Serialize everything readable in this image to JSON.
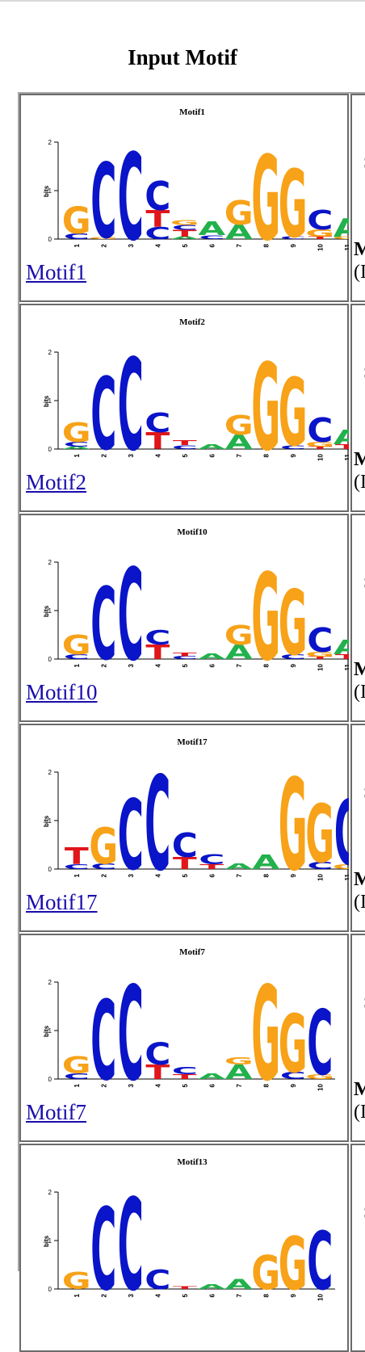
{
  "page": {
    "title": "Input Motif"
  },
  "axis": {
    "ylabel": "bits",
    "ticks": [
      "0",
      "1",
      "2"
    ]
  },
  "right_column": {
    "s": "S",
    "m": "M",
    "paren": "(I"
  },
  "colors": {
    "A": "#22b14c",
    "C": "#0a14c8",
    "G": "#f7a218",
    "T": "#e0161a"
  },
  "motifs": [
    {
      "name": "Motif1",
      "link": "Motif1",
      "positions": [
        [
          [
            "C",
            0.12
          ],
          [
            "G",
            0.55
          ]
        ],
        [
          [
            "G",
            0.04
          ],
          [
            "C",
            1.55
          ]
        ],
        [
          [
            "C",
            1.8
          ]
        ],
        [
          [
            "C",
            0.25
          ],
          [
            "T",
            0.35
          ],
          [
            "C",
            0.6
          ]
        ],
        [
          [
            "A",
            0.05
          ],
          [
            "T",
            0.14
          ],
          [
            "C",
            0.1
          ],
          [
            "G",
            0.1
          ]
        ],
        [
          [
            "C",
            0.08
          ],
          [
            "A",
            0.28
          ]
        ],
        [
          [
            "A",
            0.3
          ],
          [
            "G",
            0.5
          ]
        ],
        [
          [
            "G",
            1.75
          ]
        ],
        [
          [
            "C",
            0.05
          ],
          [
            "G",
            1.4
          ]
        ],
        [
          [
            "T",
            0.05
          ],
          [
            "G",
            0.15
          ],
          [
            "C",
            0.4
          ]
        ],
        [
          [
            "G",
            0.05
          ],
          [
            "A",
            0.38
          ]
        ]
      ]
    },
    {
      "name": "Motif2",
      "link": "Motif2",
      "positions": [
        [
          [
            "A",
            0.05
          ],
          [
            "C",
            0.1
          ],
          [
            "G",
            0.4
          ]
        ],
        [
          [
            "C",
            1.5
          ]
        ],
        [
          [
            "C",
            1.9
          ]
        ],
        [
          [
            "T",
            0.35
          ],
          [
            "C",
            0.4
          ]
        ],
        [
          [
            "C",
            0.08
          ],
          [
            "T",
            0.1
          ]
        ],
        [
          [
            "A",
            0.1
          ]
        ],
        [
          [
            "A",
            0.3
          ],
          [
            "G",
            0.4
          ]
        ],
        [
          [
            "G",
            1.8
          ]
        ],
        [
          [
            "C",
            0.08
          ],
          [
            "G",
            1.4
          ]
        ],
        [
          [
            "T",
            0.05
          ],
          [
            "G",
            0.1
          ],
          [
            "C",
            0.5
          ]
        ],
        [
          [
            "T",
            0.1
          ],
          [
            "A",
            0.3
          ]
        ]
      ]
    },
    {
      "name": "Motif10",
      "link": "Motif10",
      "positions": [
        [
          [
            "C",
            0.1
          ],
          [
            "G",
            0.4
          ]
        ],
        [
          [
            "C",
            1.5
          ]
        ],
        [
          [
            "C",
            1.9
          ]
        ],
        [
          [
            "T",
            0.3
          ],
          [
            "C",
            0.3
          ]
        ],
        [
          [
            "C",
            0.06
          ],
          [
            "T",
            0.08
          ]
        ],
        [
          [
            "A",
            0.12
          ]
        ],
        [
          [
            "A",
            0.3
          ],
          [
            "G",
            0.4
          ]
        ],
        [
          [
            "G",
            1.8
          ]
        ],
        [
          [
            "C",
            0.1
          ],
          [
            "G",
            1.35
          ]
        ],
        [
          [
            "T",
            0.05
          ],
          [
            "G",
            0.1
          ],
          [
            "C",
            0.5
          ]
        ],
        [
          [
            "T",
            0.1
          ],
          [
            "A",
            0.3
          ]
        ]
      ]
    },
    {
      "name": "Motif17",
      "link": "Motif17",
      "positions": [
        [
          [
            "C",
            0.1
          ],
          [
            "T",
            0.35
          ]
        ],
        [
          [
            "C",
            0.12
          ],
          [
            "G",
            0.75
          ]
        ],
        [
          [
            "C",
            1.45
          ]
        ],
        [
          [
            "C",
            1.95
          ]
        ],
        [
          [
            "T",
            0.25
          ],
          [
            "C",
            0.5
          ]
        ],
        [
          [
            "T",
            0.1
          ],
          [
            "C",
            0.2
          ]
        ],
        [
          [
            "A",
            0.12
          ]
        ],
        [
          [
            "A",
            0.3
          ]
        ],
        [
          [
            "G",
            1.9
          ]
        ],
        [
          [
            "C",
            0.15
          ],
          [
            "G",
            1.2
          ]
        ],
        [
          [
            "G",
            0.1
          ],
          [
            "C",
            1.35
          ]
        ]
      ]
    },
    {
      "name": "Motif7",
      "link": "Motif7",
      "positions": [
        [
          [
            "C",
            0.12
          ],
          [
            "G",
            0.35
          ]
        ],
        [
          [
            "C",
            1.65
          ]
        ],
        [
          [
            "C",
            1.95
          ]
        ],
        [
          [
            "T",
            0.3
          ],
          [
            "C",
            0.45
          ]
        ],
        [
          [
            "T",
            0.1
          ],
          [
            "C",
            0.15
          ]
        ],
        [
          [
            "A",
            0.12
          ]
        ],
        [
          [
            "A",
            0.3
          ],
          [
            "G",
            0.15
          ]
        ],
        [
          [
            "G",
            1.95
          ]
        ],
        [
          [
            "C",
            0.15
          ],
          [
            "G",
            1.2
          ]
        ],
        [
          [
            "G",
            0.1
          ],
          [
            "C",
            1.35
          ]
        ]
      ]
    },
    {
      "name": "Motif13",
      "link": "",
      "positions": [
        [
          [
            "G",
            0.35
          ]
        ],
        [
          [
            "C",
            1.7
          ]
        ],
        [
          [
            "C",
            1.9
          ]
        ],
        [
          [
            "C",
            0.4
          ]
        ],
        [
          [
            "T",
            0.05
          ]
        ],
        [
          [
            "A",
            0.1
          ]
        ],
        [
          [
            "A",
            0.2
          ]
        ],
        [
          [
            "G",
            0.7
          ]
        ],
        [
          [
            "G",
            1.1
          ]
        ],
        [
          [
            "C",
            1.2
          ]
        ]
      ]
    }
  ]
}
